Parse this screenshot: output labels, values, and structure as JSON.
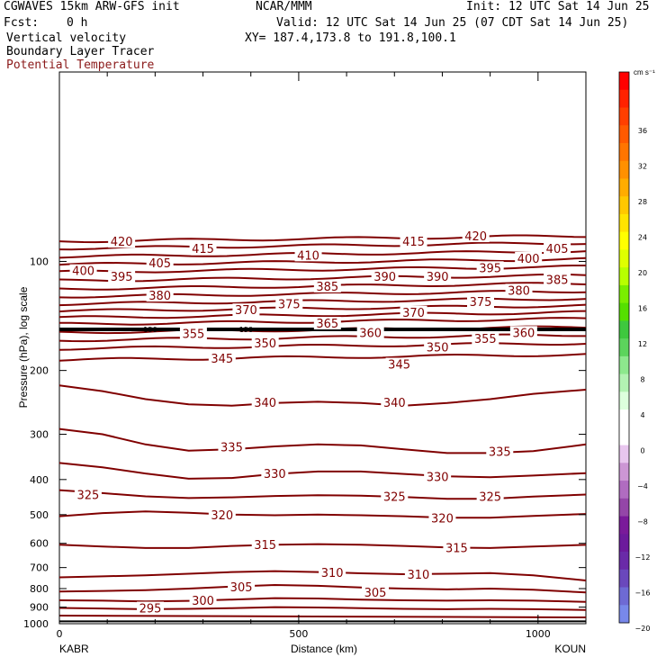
{
  "header": {
    "model": "CGWAVES 15km ARW-GFS init",
    "org": "NCAR/MMM",
    "init": "Init: 12 UTC Sat 14 Jun 25",
    "fcst_label": "Fcst:",
    "fcst_value": "0 h",
    "valid": "Valid: 12 UTC Sat 14 Jun 25 (07 CDT Sat 14 Jun 25)",
    "field1": "Vertical velocity",
    "xy": "XY= 187.4,173.8 to 191.8,100.1",
    "field2": "Boundary Layer Tracer",
    "field3": "Potential Temperature"
  },
  "colors": {
    "theta_contour": "#800000",
    "tropopause_line": "#000000",
    "field3_text": "#8b1a1a"
  },
  "chart_data": {
    "type": "contour",
    "xlabel": "Distance (km)",
    "ylabel": "Pressure (hPa), log scale",
    "xlim": [
      0,
      1100
    ],
    "ylim_hPa": [
      1000,
      30
    ],
    "x_ticks": [
      0,
      500,
      1000
    ],
    "y_ticks": [
      100,
      200,
      300,
      400,
      500,
      600,
      700,
      800,
      900,
      1000
    ],
    "left_station": "KABR",
    "right_station": "KOUN",
    "upper_levels": [
      {
        "theta": 420,
        "p": 88
      },
      {
        "theta": 415,
        "p": 92
      },
      {
        "theta": 410,
        "p": 97
      },
      {
        "theta": 405,
        "p": 102
      },
      {
        "theta": 400,
        "p": 107
      },
      {
        "theta": 395,
        "p": 113
      },
      {
        "theta": 390,
        "p": 119
      },
      {
        "theta": 385,
        "p": 125
      },
      {
        "theta": 380,
        "p": 131
      },
      {
        "theta": 375,
        "p": 137
      },
      {
        "theta": 370,
        "p": 143
      },
      {
        "theta": 365,
        "p": 149
      },
      {
        "theta": 360,
        "p": 157
      },
      {
        "theta": 355,
        "p": 165
      },
      {
        "theta": 350,
        "p": 174
      },
      {
        "theta": 345,
        "p": 187
      }
    ],
    "tropopause_p": 154,
    "tropopause_label": "150",
    "lower_contours": [
      {
        "theta": 340,
        "p": [
          220,
          228,
          240,
          248,
          250,
          246,
          244,
          246,
          250,
          246,
          240,
          232,
          226
        ]
      },
      {
        "theta": 335,
        "p": [
          290,
          300,
          320,
          333,
          330,
          324,
          320,
          322,
          330,
          338,
          338,
          334,
          320
        ]
      },
      {
        "theta": 330,
        "p": [
          360,
          370,
          385,
          398,
          396,
          386,
          380,
          380,
          386,
          392,
          394,
          390,
          384
        ]
      },
      {
        "theta": 325,
        "p": [
          428,
          436,
          445,
          450,
          448,
          444,
          442,
          443,
          447,
          452,
          452,
          446,
          440
        ]
      },
      {
        "theta": 320,
        "p": [
          505,
          495,
          490,
          494,
          500,
          502,
          500,
          502,
          505,
          510,
          510,
          504,
          498
        ]
      },
      {
        "theta": 315,
        "p": [
          605,
          612,
          618,
          618,
          610,
          605,
          603,
          605,
          610,
          616,
          618,
          612,
          606
        ]
      },
      {
        "theta": 310,
        "p": [
          745,
          740,
          735,
          728,
          720,
          716,
          720,
          726,
          730,
          728,
          725,
          735,
          760
        ]
      },
      {
        "theta": 305,
        "p": [
          815,
          812,
          808,
          800,
          790,
          782,
          786,
          794,
          800,
          804,
          800,
          806,
          820
        ]
      },
      {
        "theta": 300,
        "p": [
          862,
          864,
          868,
          865,
          858,
          850,
          852,
          858,
          862,
          864,
          862,
          864,
          870
        ]
      },
      {
        "theta": 295,
        "p": [
          905,
          908,
          912,
          910,
          906,
          900,
          902,
          906,
          910,
          912,
          910,
          912,
          916
        ]
      }
    ],
    "contour_x_km": [
      0,
      90,
      180,
      270,
      360,
      450,
      540,
      630,
      720,
      810,
      900,
      990,
      1100
    ],
    "labels": [
      {
        "text": "420",
        "x": 130,
        "p": 88
      },
      {
        "text": "415",
        "x": 300,
        "p": 92
      },
      {
        "text": "415",
        "x": 740,
        "p": 88
      },
      {
        "text": "420",
        "x": 870,
        "p": 85
      },
      {
        "text": "410",
        "x": 520,
        "p": 96
      },
      {
        "text": "405",
        "x": 210,
        "p": 101
      },
      {
        "text": "405",
        "x": 1040,
        "p": 92
      },
      {
        "text": "400",
        "x": 50,
        "p": 106
      },
      {
        "text": "400",
        "x": 980,
        "p": 98
      },
      {
        "text": "395",
        "x": 130,
        "p": 110
      },
      {
        "text": "395",
        "x": 900,
        "p": 104
      },
      {
        "text": "390",
        "x": 680,
        "p": 110
      },
      {
        "text": "390",
        "x": 790,
        "p": 110
      },
      {
        "text": "385",
        "x": 560,
        "p": 117
      },
      {
        "text": "385",
        "x": 1040,
        "p": 112
      },
      {
        "text": "380",
        "x": 210,
        "p": 124
      },
      {
        "text": "380",
        "x": 960,
        "p": 120
      },
      {
        "text": "375",
        "x": 480,
        "p": 131
      },
      {
        "text": "375",
        "x": 880,
        "p": 129
      },
      {
        "text": "370",
        "x": 390,
        "p": 136
      },
      {
        "text": "370",
        "x": 740,
        "p": 138
      },
      {
        "text": "365",
        "x": 560,
        "p": 148
      },
      {
        "text": "360",
        "x": 650,
        "p": 157
      },
      {
        "text": "360",
        "x": 970,
        "p": 157
      },
      {
        "text": "355",
        "x": 280,
        "p": 158
      },
      {
        "text": "355",
        "x": 890,
        "p": 163
      },
      {
        "text": "350",
        "x": 430,
        "p": 168
      },
      {
        "text": "350",
        "x": 790,
        "p": 172
      },
      {
        "text": "345",
        "x": 340,
        "p": 185
      },
      {
        "text": "345",
        "x": 710,
        "p": 192
      },
      {
        "text": "340",
        "x": 430,
        "p": 245
      },
      {
        "text": "340",
        "x": 700,
        "p": 245
      },
      {
        "text": "335",
        "x": 360,
        "p": 325
      },
      {
        "text": "335",
        "x": 920,
        "p": 334
      },
      {
        "text": "330",
        "x": 450,
        "p": 385
      },
      {
        "text": "330",
        "x": 790,
        "p": 392
      },
      {
        "text": "325",
        "x": 60,
        "p": 440
      },
      {
        "text": "325",
        "x": 700,
        "p": 445
      },
      {
        "text": "325",
        "x": 900,
        "p": 445
      },
      {
        "text": "320",
        "x": 340,
        "p": 500
      },
      {
        "text": "320",
        "x": 800,
        "p": 510
      },
      {
        "text": "315",
        "x": 430,
        "p": 605
      },
      {
        "text": "315",
        "x": 830,
        "p": 616
      },
      {
        "text": "310",
        "x": 570,
        "p": 722
      },
      {
        "text": "310",
        "x": 750,
        "p": 730
      },
      {
        "text": "305",
        "x": 380,
        "p": 790
      },
      {
        "text": "305",
        "x": 660,
        "p": 818
      },
      {
        "text": "300",
        "x": 300,
        "p": 862
      },
      {
        "text": "295",
        "x": 190,
        "p": 905
      }
    ]
  },
  "colorbar": {
    "unit": "cm s⁻¹",
    "colors": [
      "#ff0000",
      "#ff2200",
      "#ff3f00",
      "#ff5a00",
      "#ff7500",
      "#ff9000",
      "#ffac00",
      "#ffc800",
      "#ffe400",
      "#ffff00",
      "#dfff00",
      "#b8ff00",
      "#7aee00",
      "#55e000",
      "#3ec83e",
      "#5cd45c",
      "#8de88d",
      "#b3f2b3",
      "#ddffdd",
      "#ffffff",
      "#ffffff",
      "#e8c6ee",
      "#cc96d4",
      "#b06cc0",
      "#9446a8",
      "#7a1a9a",
      "#6c1a9c",
      "#6a2aa8",
      "#6a48bc",
      "#6e6ad4",
      "#7888ea"
    ],
    "labels": [
      "36",
      "32",
      "28",
      "24",
      "20",
      "16",
      "12",
      "8",
      "4",
      "0",
      "−4",
      "−8",
      "−12",
      "−16",
      "−20"
    ]
  }
}
